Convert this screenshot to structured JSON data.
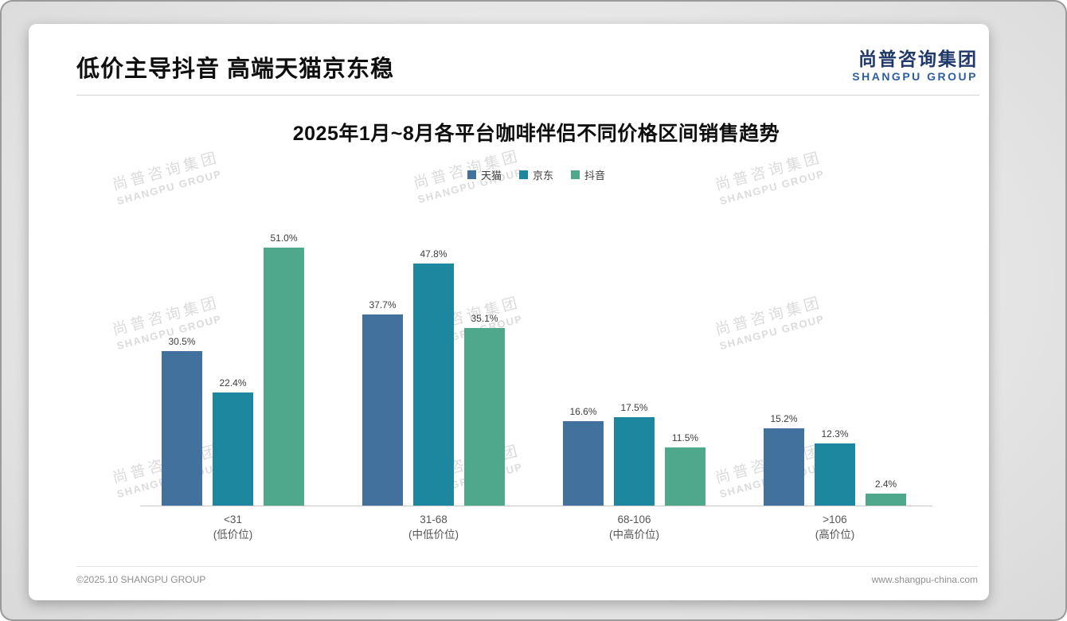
{
  "header": {
    "title": "低价主导抖音 高端天猫京东稳"
  },
  "logo": {
    "cn": "尚普咨询集团",
    "en": "SHANGPU GROUP"
  },
  "watermark": {
    "cn": "尚普咨询集团",
    "en": "SHANGPU GROUP"
  },
  "footer": {
    "left": "©2025.10 SHANGPU GROUP",
    "right": "www.shangpu-china.com"
  },
  "chart_data": {
    "type": "bar",
    "title": "2025年1月~8月各平台咖啡伴侣不同价格区间销售趋势",
    "categories": [
      "<31",
      "31-68",
      "68-106",
      ">106"
    ],
    "category_sublabels": [
      "(低价位)",
      "(中低价位)",
      "(中高价位)",
      "(高价位)"
    ],
    "series": [
      {
        "name": "天猫",
        "color": "#43719e",
        "values": [
          30.5,
          37.7,
          16.6,
          15.2
        ]
      },
      {
        "name": "京东",
        "color": "#1e87a0",
        "values": [
          22.4,
          47.8,
          17.5,
          12.3
        ]
      },
      {
        "name": "抖音",
        "color": "#4fa78c",
        "values": [
          51.0,
          35.1,
          11.5,
          2.4
        ]
      }
    ],
    "value_suffix": "%",
    "ylim": [
      0,
      52
    ],
    "legend_position": "top",
    "grid": false
  }
}
